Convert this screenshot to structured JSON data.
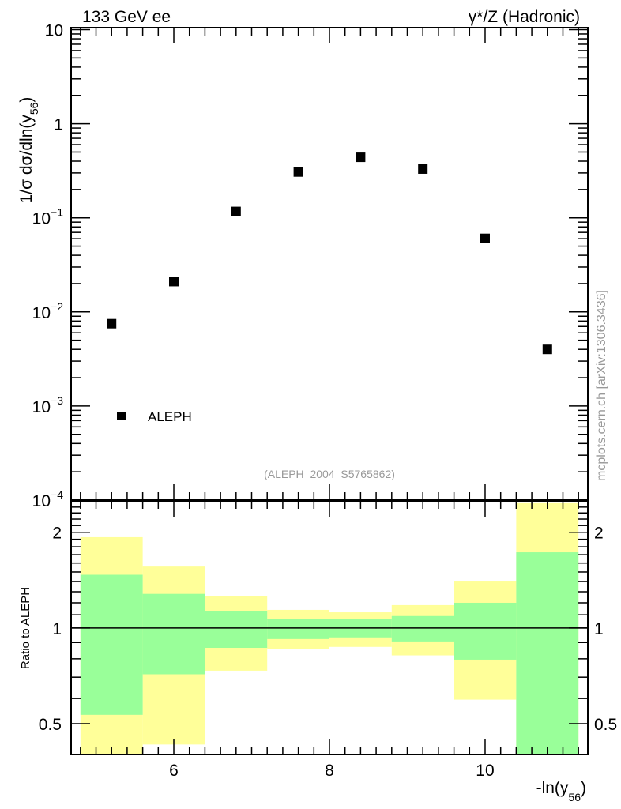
{
  "chart_data": [
    {
      "type": "scatter",
      "title_left": "133 GeV ee",
      "title_right": "γ*/Z (Hadronic)",
      "ylabel": {
        "main": "1/σ  dσ/dln(y",
        "sub": "56",
        "end": ")"
      },
      "yscale": "log",
      "ylim": [
        0.0001,
        10.5
      ],
      "xlim": [
        4.68,
        11.32
      ],
      "y_ticks": [
        {
          "value": 10,
          "base": "10",
          "exp": ""
        },
        {
          "value": 1,
          "base": "1",
          "exp": ""
        },
        {
          "value": 0.1,
          "base": "10",
          "exp": "−1"
        },
        {
          "value": 0.01,
          "base": "10",
          "exp": "−2"
        },
        {
          "value": 0.001,
          "base": "10",
          "exp": "−3"
        },
        {
          "value": 0.0001,
          "base": "10",
          "exp": "−4"
        }
      ],
      "series": [
        {
          "name": "ALEPH",
          "marker": "square",
          "color": "#000000",
          "x": [
            5.2,
            6.0,
            6.8,
            7.6,
            8.4,
            9.2,
            10.0,
            10.8
          ],
          "y": [
            0.0075,
            0.021,
            0.117,
            0.307,
            0.44,
            0.33,
            0.0605,
            0.004
          ]
        }
      ],
      "legend": {
        "label": "ALEPH",
        "placement": "bottom-left"
      },
      "annotation": "(ALEPH_2004_S5765862)",
      "watermark": "mcplots.cern.ch [arXiv:1306.3436]"
    },
    {
      "type": "area",
      "ylabel": "Ratio to ALEPH",
      "yscale": "log",
      "ylim": [
        0.4,
        2.51
      ],
      "xlim": [
        4.68,
        11.32
      ],
      "x_ticks": [
        "6",
        "8",
        "10"
      ],
      "x_tick_values": [
        6,
        8,
        10
      ],
      "y_ticks": [
        "0.5",
        "1",
        "2"
      ],
      "y_tick_values": [
        0.5,
        1,
        2
      ],
      "xlabel": {
        "main": "-ln(y",
        "sub": "56",
        "end": ")"
      },
      "bin_edges": [
        4.8,
        5.6,
        6.4,
        7.2,
        8.0,
        8.8,
        9.6,
        10.4,
        11.2
      ],
      "bands": [
        {
          "name": "total uncertainty",
          "color": "#ffff99",
          "low": [
            0.3,
            0.43,
            0.734,
            0.857,
            0.872,
            0.82,
            0.595,
            0.3
          ],
          "high": [
            1.93,
            1.56,
            1.26,
            1.14,
            1.12,
            1.18,
            1.4,
            2.47
          ]
        },
        {
          "name": "statistical uncertainty",
          "color": "#99ff99",
          "low": [
            0.533,
            0.715,
            0.866,
            0.923,
            0.934,
            0.907,
            0.795,
            0.3
          ],
          "high": [
            1.47,
            1.28,
            1.13,
            1.07,
            1.065,
            1.09,
            1.2,
            1.73
          ]
        }
      ],
      "reference_line": 1
    }
  ]
}
